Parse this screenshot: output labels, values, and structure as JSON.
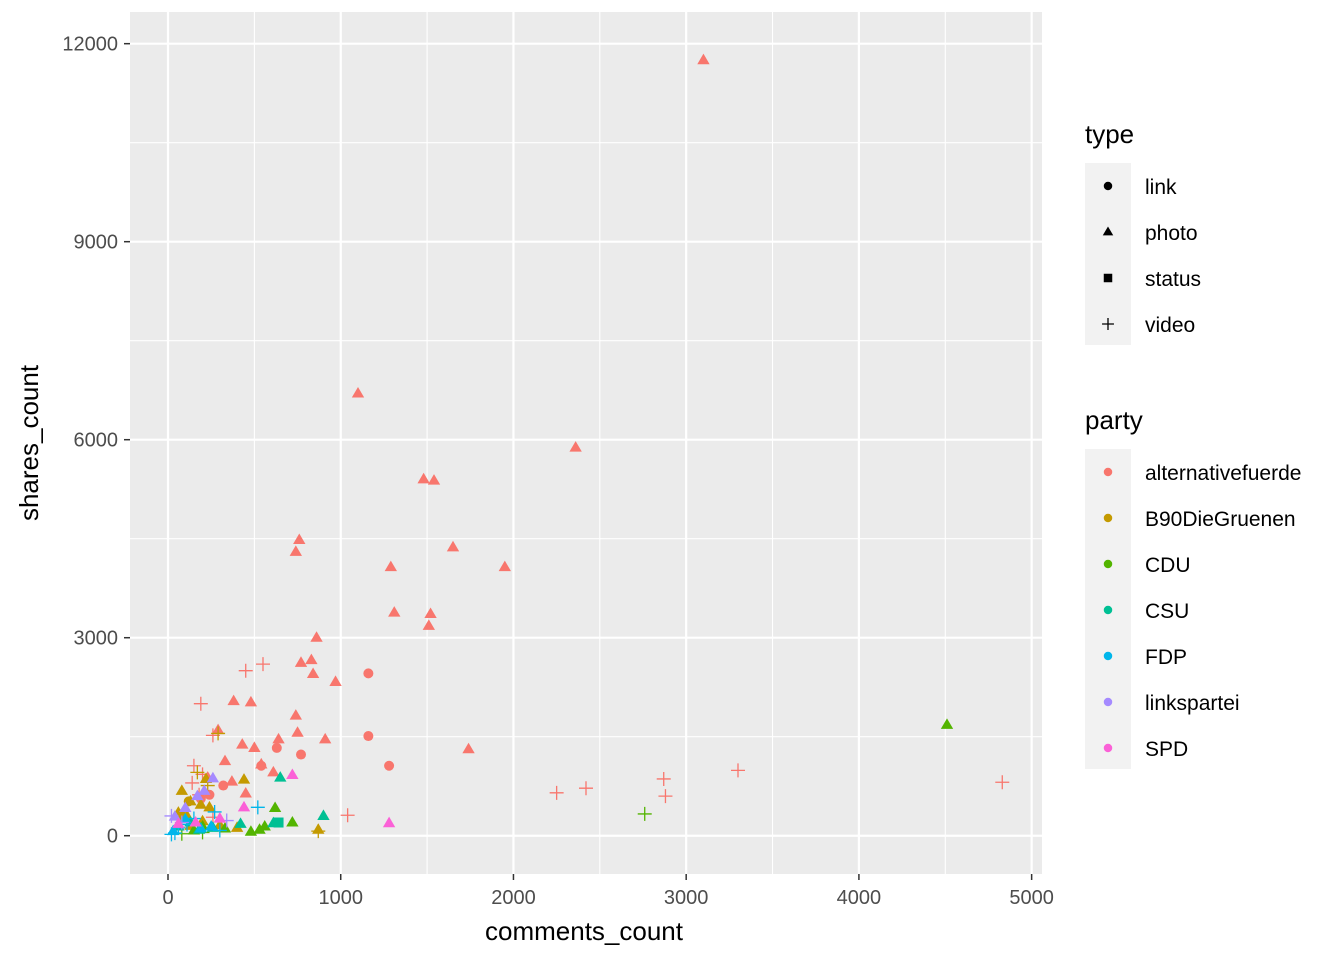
{
  "chart_data": {
    "type": "scatter",
    "title": "",
    "xlabel": "comments_count",
    "ylabel": "shares_count",
    "xlim": [
      -220,
      5060
    ],
    "ylim": [
      -580,
      12480
    ],
    "xticks": [
      0,
      1000,
      2000,
      3000,
      4000,
      5000
    ],
    "yticks": [
      0,
      3000,
      6000,
      9000,
      12000
    ],
    "xtick_labels": [
      "0",
      "1000",
      "2000",
      "3000",
      "4000",
      "5000"
    ],
    "ytick_labels": [
      "0",
      "3000",
      "6000",
      "9000",
      "12000"
    ],
    "grid": true,
    "legend_position": "right",
    "panel_background": "#ebebeb",
    "shape_legend": {
      "title": "type",
      "entries": [
        {
          "label": "link",
          "shape": "circle"
        },
        {
          "label": "photo",
          "shape": "triangle"
        },
        {
          "label": "status",
          "shape": "square"
        },
        {
          "label": "video",
          "shape": "plus"
        }
      ]
    },
    "color_legend": {
      "title": "party",
      "entries": [
        {
          "label": "alternativefuerde",
          "color": "#F8766D"
        },
        {
          "label": "B90DieGruenen",
          "color": "#C49A00"
        },
        {
          "label": "CDU",
          "color": "#53B400"
        },
        {
          "label": "CSU",
          "color": "#00C094"
        },
        {
          "label": "FDP",
          "color": "#00B6EB"
        },
        {
          "label": "linkspartei",
          "color": "#A58AFF"
        },
        {
          "label": "SPD",
          "color": "#FB61D7"
        }
      ]
    },
    "series": [
      {
        "party": "alternativefuerde",
        "type": "photo",
        "points": [
          [
            3100,
            11750
          ],
          [
            1100,
            6700
          ],
          [
            2360,
            5880
          ],
          [
            1480,
            5400
          ],
          [
            1540,
            5380
          ],
          [
            760,
            4480
          ],
          [
            740,
            4300
          ],
          [
            1650,
            4370
          ],
          [
            1290,
            4070
          ],
          [
            1950,
            4070
          ],
          [
            1310,
            3380
          ],
          [
            1520,
            3360
          ],
          [
            1510,
            3180
          ],
          [
            860,
            3000
          ],
          [
            770,
            2620
          ],
          [
            830,
            2660
          ],
          [
            840,
            2450
          ],
          [
            970,
            2330
          ],
          [
            380,
            2040
          ],
          [
            480,
            2020
          ],
          [
            740,
            1820
          ],
          [
            750,
            1560
          ],
          [
            910,
            1460
          ],
          [
            640,
            1460
          ],
          [
            1740,
            1310
          ],
          [
            290,
            1600
          ],
          [
            430,
            1380
          ],
          [
            500,
            1330
          ],
          [
            330,
            1130
          ],
          [
            540,
            1080
          ],
          [
            610,
            960
          ],
          [
            230,
            880
          ],
          [
            370,
            820
          ],
          [
            450,
            640
          ]
        ]
      },
      {
        "party": "alternativefuerde",
        "type": "link",
        "points": [
          [
            1160,
            2460
          ],
          [
            1160,
            1510
          ],
          [
            1280,
            1060
          ],
          [
            770,
            1230
          ],
          [
            630,
            1330
          ],
          [
            540,
            1060
          ],
          [
            320,
            760
          ],
          [
            240,
            620
          ],
          [
            190,
            560
          ]
        ]
      },
      {
        "party": "alternativefuerde",
        "type": "video",
        "points": [
          [
            4830,
            810
          ],
          [
            3300,
            990
          ],
          [
            2870,
            860
          ],
          [
            2880,
            600
          ],
          [
            2420,
            720
          ],
          [
            2250,
            650
          ],
          [
            1040,
            310
          ],
          [
            550,
            2600
          ],
          [
            450,
            2500
          ],
          [
            190,
            2000
          ],
          [
            260,
            1520
          ],
          [
            150,
            1060
          ],
          [
            200,
            930
          ],
          [
            140,
            800
          ],
          [
            260,
            280
          ],
          [
            180,
            620
          ]
        ]
      },
      {
        "party": "B90DieGruenen",
        "type": "photo",
        "points": [
          [
            440,
            850
          ],
          [
            220,
            860
          ],
          [
            80,
            680
          ],
          [
            130,
            520
          ],
          [
            190,
            470
          ],
          [
            240,
            430
          ],
          [
            110,
            300
          ],
          [
            60,
            350
          ],
          [
            130,
            150
          ],
          [
            200,
            220
          ],
          [
            870,
            90
          ],
          [
            300,
            160
          ],
          [
            400,
            120
          ]
        ]
      },
      {
        "party": "B90DieGruenen",
        "type": "video",
        "points": [
          [
            870,
            70
          ],
          [
            290,
            1550
          ],
          [
            170,
            960
          ],
          [
            230,
            760
          ]
        ]
      },
      {
        "party": "B90DieGruenen",
        "type": "link",
        "points": [
          [
            120,
            520
          ],
          [
            80,
            300
          ]
        ]
      },
      {
        "party": "CDU",
        "type": "photo",
        "points": [
          [
            4510,
            1680
          ],
          [
            620,
            420
          ],
          [
            720,
            200
          ],
          [
            560,
            140
          ],
          [
            530,
            90
          ],
          [
            480,
            60
          ],
          [
            330,
            110
          ],
          [
            200,
            140
          ],
          [
            150,
            80
          ]
        ]
      },
      {
        "party": "CDU",
        "type": "video",
        "points": [
          [
            2760,
            330
          ],
          [
            200,
            50
          ],
          [
            80,
            30
          ]
        ]
      },
      {
        "party": "CSU",
        "type": "photo",
        "points": [
          [
            650,
            880
          ],
          [
            900,
            300
          ],
          [
            610,
            190
          ],
          [
            420,
            180
          ],
          [
            260,
            120
          ],
          [
            130,
            200
          ],
          [
            60,
            140
          ],
          [
            180,
            90
          ]
        ]
      },
      {
        "party": "CSU",
        "type": "status",
        "points": [
          [
            640,
            200
          ]
        ]
      },
      {
        "party": "FDP",
        "type": "video",
        "points": [
          [
            520,
            430
          ],
          [
            270,
            360
          ],
          [
            150,
            260
          ],
          [
            60,
            120
          ],
          [
            40,
            40
          ],
          [
            110,
            170
          ],
          [
            300,
            80
          ],
          [
            20,
            20
          ]
        ]
      },
      {
        "party": "FDP",
        "type": "photo",
        "points": [
          [
            100,
            250
          ],
          [
            190,
            110
          ],
          [
            30,
            70
          ],
          [
            250,
            140
          ]
        ]
      },
      {
        "party": "linkspartei",
        "type": "photo",
        "points": [
          [
            260,
            870
          ],
          [
            210,
            680
          ],
          [
            170,
            600
          ],
          [
            100,
            420
          ],
          [
            40,
            290
          ]
        ]
      },
      {
        "party": "linkspartei",
        "type": "video",
        "points": [
          [
            340,
            230
          ],
          [
            20,
            300
          ],
          [
            80,
            200
          ]
        ]
      },
      {
        "party": "SPD",
        "type": "photo",
        "points": [
          [
            1280,
            190
          ],
          [
            720,
            920
          ],
          [
            440,
            430
          ],
          [
            300,
            260
          ],
          [
            160,
            200
          ],
          [
            60,
            180
          ]
        ]
      }
    ]
  }
}
